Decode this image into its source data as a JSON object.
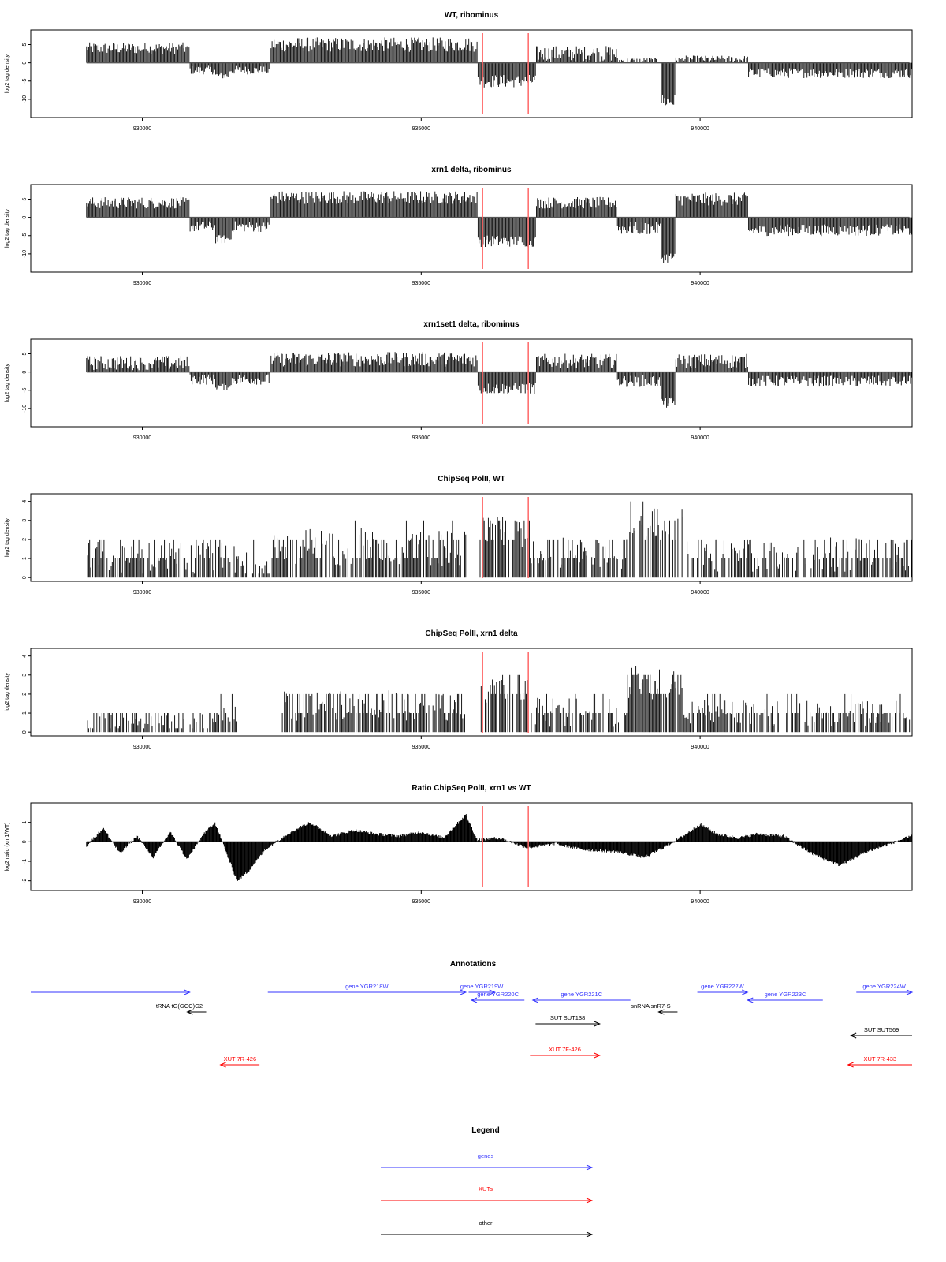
{
  "x_axis": {
    "xlim": [
      928000,
      943800
    ],
    "ticks": [
      930000,
      935000,
      940000
    ],
    "tick_labels": [
      "930000",
      "935000",
      "940000"
    ]
  },
  "markers": {
    "x": [
      936100,
      936920
    ],
    "color": "#ff6666"
  },
  "colors": {
    "bars": "#000000",
    "gene": "#3333ff",
    "xut": "#ff0000",
    "other": "#000000"
  },
  "chart_data": [
    {
      "type": "bar",
      "title": "WT, ribominus",
      "ylabel": "log2 tag density",
      "ylim": [
        -15,
        9
      ],
      "yticks": [
        -10,
        -5,
        0,
        5
      ],
      "ytick_labels": [
        "-10",
        "-5",
        "0",
        "5"
      ],
      "segments": [
        {
          "from": 929000,
          "to": 930850,
          "value": 4.0,
          "var": 1.6
        },
        {
          "from": 930850,
          "to": 932300,
          "value": -2.0,
          "var": 1.2
        },
        {
          "from": 931300,
          "to": 931550,
          "value": -3.5,
          "var": 1.0
        },
        {
          "from": 932300,
          "to": 936000,
          "value": 5.0,
          "var": 2.0
        },
        {
          "from": 936000,
          "to": 937050,
          "value": -5.0,
          "var": 1.8
        },
        {
          "from": 937050,
          "to": 938500,
          "value": 2.5,
          "var": 2.2
        },
        {
          "from": 938500,
          "to": 939300,
          "value": 0.6,
          "var": 0.8
        },
        {
          "from": 939300,
          "to": 939550,
          "value": -10.5,
          "var": 2.0
        },
        {
          "from": 939550,
          "to": 940850,
          "value": 1.0,
          "var": 1.0
        },
        {
          "from": 940850,
          "to": 943800,
          "value": -2.8,
          "var": 1.4
        }
      ]
    },
    {
      "type": "bar",
      "title": "xrn1 delta, ribominus",
      "ylabel": "log2 tag density",
      "ylim": [
        -15,
        9
      ],
      "yticks": [
        -10,
        -5,
        0,
        5
      ],
      "ytick_labels": [
        "-10",
        "-5",
        "0",
        "5"
      ],
      "segments": [
        {
          "from": 929000,
          "to": 930850,
          "value": 4.0,
          "var": 1.6
        },
        {
          "from": 930850,
          "to": 932300,
          "value": -2.5,
          "var": 1.5
        },
        {
          "from": 931300,
          "to": 931600,
          "value": -6.0,
          "var": 1.2
        },
        {
          "from": 932300,
          "to": 936000,
          "value": 5.5,
          "var": 1.8
        },
        {
          "from": 936000,
          "to": 937050,
          "value": -6.5,
          "var": 1.6
        },
        {
          "from": 937050,
          "to": 938500,
          "value": 4.0,
          "var": 1.6
        },
        {
          "from": 938500,
          "to": 939300,
          "value": -3.0,
          "var": 1.8
        },
        {
          "from": 939300,
          "to": 939550,
          "value": -11.0,
          "var": 1.5
        },
        {
          "from": 939550,
          "to": 940850,
          "value": 5.0,
          "var": 1.8
        },
        {
          "from": 940850,
          "to": 943800,
          "value": -3.5,
          "var": 1.6
        }
      ]
    },
    {
      "type": "bar",
      "title": "xrn1set1 delta, ribominus",
      "ylabel": "log2 tag density",
      "ylim": [
        -15,
        9
      ],
      "yticks": [
        -10,
        -5,
        0,
        5
      ],
      "ytick_labels": [
        "-10",
        "-5",
        "0",
        "5"
      ],
      "segments": [
        {
          "from": 929000,
          "to": 930850,
          "value": 2.5,
          "var": 2.0
        },
        {
          "from": 930850,
          "to": 932300,
          "value": -2.0,
          "var": 1.5
        },
        {
          "from": 931300,
          "to": 931600,
          "value": -4.0,
          "var": 1.0
        },
        {
          "from": 932300,
          "to": 936000,
          "value": 3.5,
          "var": 2.0
        },
        {
          "from": 936000,
          "to": 937050,
          "value": -4.5,
          "var": 1.6
        },
        {
          "from": 937050,
          "to": 938500,
          "value": 3.0,
          "var": 2.0
        },
        {
          "from": 938500,
          "to": 939300,
          "value": -2.5,
          "var": 1.6
        },
        {
          "from": 939300,
          "to": 939550,
          "value": -8.5,
          "var": 1.5
        },
        {
          "from": 939550,
          "to": 940850,
          "value": 3.0,
          "var": 2.0
        },
        {
          "from": 940850,
          "to": 943800,
          "value": -2.5,
          "var": 1.5
        }
      ]
    },
    {
      "type": "bar",
      "title": "ChipSeq PolII, WT",
      "ylabel": "log2 tag density",
      "ylim": [
        -0.2,
        4.4
      ],
      "yticks": [
        0,
        1,
        2,
        3,
        4
      ],
      "ytick_labels": [
        "0",
        "1",
        "2",
        "3",
        "4"
      ],
      "segments": [
        {
          "from": 929000,
          "to": 931500,
          "value": 1.0,
          "var": 0.9
        },
        {
          "from": 931500,
          "to": 932300,
          "value": 0.8,
          "var": 0.9
        },
        {
          "from": 932300,
          "to": 935800,
          "value": 1.6,
          "var": 1.0
        },
        {
          "from": 935800,
          "to": 936050,
          "value": 0.0,
          "var": 0.0
        },
        {
          "from": 936050,
          "to": 936950,
          "value": 2.4,
          "var": 0.8
        },
        {
          "from": 936950,
          "to": 938700,
          "value": 1.2,
          "var": 0.9
        },
        {
          "from": 938700,
          "to": 939700,
          "value": 3.0,
          "var": 1.0
        },
        {
          "from": 939700,
          "to": 943800,
          "value": 1.2,
          "var": 0.9
        }
      ]
    },
    {
      "type": "bar",
      "title": "ChipSeq PolII, xrn1 delta",
      "ylabel": "log2 tag density",
      "ylim": [
        -0.2,
        4.4
      ],
      "yticks": [
        0,
        1,
        2,
        3,
        4
      ],
      "ytick_labels": [
        "0",
        "1",
        "2",
        "3",
        "4"
      ],
      "segments": [
        {
          "from": 929000,
          "to": 931400,
          "value": 0.5,
          "var": 0.5
        },
        {
          "from": 931400,
          "to": 931700,
          "value": 1.2,
          "var": 0.8
        },
        {
          "from": 931700,
          "to": 932500,
          "value": 0.0,
          "var": 0.0
        },
        {
          "from": 932500,
          "to": 935800,
          "value": 1.4,
          "var": 0.8
        },
        {
          "from": 935800,
          "to": 936050,
          "value": 0.0,
          "var": 0.0
        },
        {
          "from": 936050,
          "to": 936950,
          "value": 2.2,
          "var": 0.7
        },
        {
          "from": 936950,
          "to": 938700,
          "value": 1.0,
          "var": 0.8
        },
        {
          "from": 938700,
          "to": 939700,
          "value": 2.6,
          "var": 0.9
        },
        {
          "from": 939700,
          "to": 943800,
          "value": 1.0,
          "var": 0.7
        }
      ]
    },
    {
      "type": "area",
      "title": "Ratio ChipSeq PolII, xrn1 vs WT",
      "ylabel": "log2 ratio (xrn1/WT)",
      "ylim": [
        -2.5,
        2.0
      ],
      "yticks": [
        -2,
        -1,
        0,
        1
      ],
      "ytick_labels": [
        "-2",
        "-1",
        "0",
        "1"
      ],
      "x": [
        929000,
        929300,
        929600,
        929900,
        930200,
        930500,
        930800,
        931100,
        931300,
        931550,
        931700,
        931900,
        932200,
        932600,
        933000,
        933400,
        933800,
        934200,
        934600,
        935000,
        935400,
        935800,
        936000,
        936400,
        936900,
        937400,
        937900,
        938500,
        939000,
        939400,
        939700,
        940000,
        940300,
        940700,
        941000,
        941500,
        942000,
        942500,
        943000,
        943400,
        943800
      ],
      "y": [
        -0.2,
        0.7,
        -0.6,
        0.3,
        -0.8,
        0.5,
        -0.9,
        0.4,
        1.0,
        -0.9,
        -2.0,
        -1.5,
        -0.4,
        0.4,
        1.0,
        0.3,
        0.6,
        0.4,
        0.3,
        0.5,
        0.2,
        1.4,
        0.1,
        0.2,
        -0.3,
        -0.1,
        -0.4,
        -0.5,
        -0.8,
        -0.2,
        0.3,
        0.9,
        0.4,
        0.2,
        0.4,
        0.3,
        -0.6,
        -1.2,
        -0.5,
        -0.1,
        0.3
      ]
    }
  ],
  "annotations_title": "Annotations",
  "annotations": [
    {
      "label": "",
      "kind": "gene",
      "from": 928000,
      "to": 930850,
      "strand": "+",
      "row": 0
    },
    {
      "label": "gene YGR218W",
      "kind": "gene",
      "from": 932250,
      "to": 935800,
      "strand": "+",
      "row": 0
    },
    {
      "label": "gene YGR219W",
      "kind": "gene",
      "from": 935850,
      "to": 936320,
      "strand": "+",
      "row": 0
    },
    {
      "label": "gene YGR220C",
      "kind": "gene",
      "from": 935900,
      "to": 936850,
      "strand": "-",
      "row": 1
    },
    {
      "label": "gene YGR221C",
      "kind": "gene",
      "from": 937000,
      "to": 938750,
      "strand": "-",
      "row": 1
    },
    {
      "label": "gene YGR222W",
      "kind": "gene",
      "from": 939950,
      "to": 940850,
      "strand": "+",
      "row": 0
    },
    {
      "label": "gene YGR223C",
      "kind": "gene",
      "from": 940850,
      "to": 942200,
      "strand": "-",
      "row": 1
    },
    {
      "label": "gene YGR224W",
      "kind": "gene",
      "from": 942800,
      "to": 944600,
      "strand": "+",
      "row": 0
    },
    {
      "label": "tRNA tG(GCC)G2",
      "kind": "other",
      "from": 930950,
      "to": 931000,
      "strand": "-",
      "row": 2
    },
    {
      "label": "SUT SUT138",
      "kind": "other",
      "from": 937050,
      "to": 938200,
      "strand": "+",
      "row": 3
    },
    {
      "label": "snRNA snR7-S",
      "kind": "other",
      "from": 939350,
      "to": 939500,
      "strand": "-",
      "row": 2
    },
    {
      "label": "SUT SUT569",
      "kind": "other",
      "from": 942700,
      "to": 944600,
      "strand": "-",
      "row": 4
    },
    {
      "label": "XUT 7R-426",
      "kind": "xut",
      "from": 931400,
      "to": 932100,
      "strand": "-",
      "row": 6
    },
    {
      "label": "XUT 7F-426",
      "kind": "xut",
      "from": 936950,
      "to": 938200,
      "strand": "+",
      "row": 5
    },
    {
      "label": "XUT 7R-433",
      "kind": "xut",
      "from": 942650,
      "to": 944600,
      "strand": "-",
      "row": 6
    }
  ],
  "legend_title": "Legend",
  "legend": [
    {
      "label": "genes",
      "kind": "gene"
    },
    {
      "label": "XUTs",
      "kind": "xut"
    },
    {
      "label": "other",
      "kind": "other"
    }
  ]
}
